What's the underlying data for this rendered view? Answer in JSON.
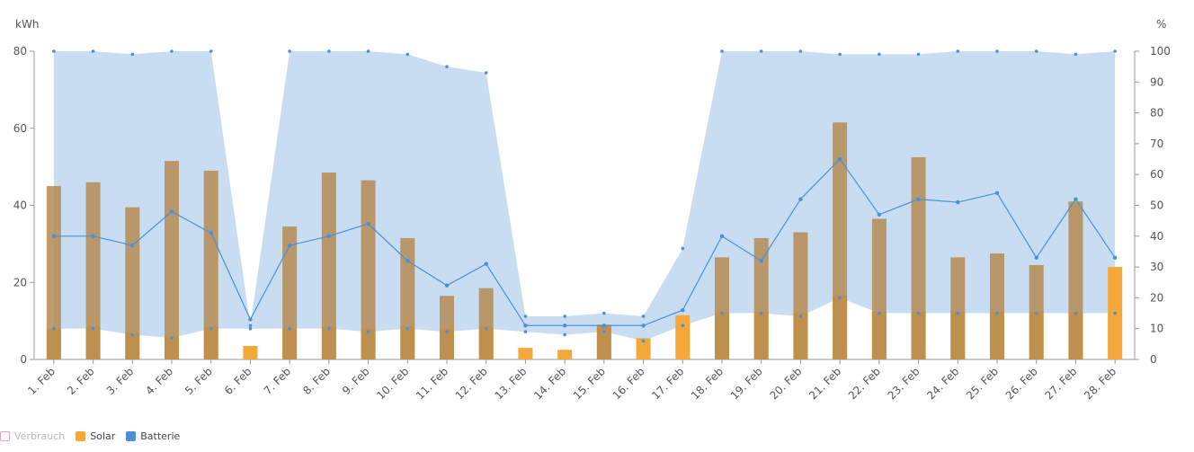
{
  "chart_data": {
    "type": "bar",
    "categories": [
      "1. Feb",
      "2. Feb",
      "3. Feb",
      "4. Feb",
      "5. Feb",
      "6. Feb",
      "7. Feb",
      "8. Feb",
      "9. Feb",
      "10. Feb",
      "11. Feb",
      "12. Feb",
      "13. Feb",
      "14. Feb",
      "15. Feb",
      "16. Feb",
      "17. Feb",
      "18. Feb",
      "19. Feb",
      "20. Feb",
      "21. Feb",
      "22. Feb",
      "23. Feb",
      "24. Feb",
      "25. Feb",
      "26. Feb",
      "27. Feb",
      "28. Feb"
    ],
    "left_axis": {
      "unit": "kWh",
      "ticks": [
        0,
        20,
        40,
        60,
        80
      ],
      "ylim": [
        0,
        80
      ]
    },
    "right_axis": {
      "unit": "%",
      "ticks": [
        0,
        10,
        20,
        30,
        40,
        50,
        60,
        70,
        80,
        90,
        100
      ],
      "ylim": [
        0,
        100
      ]
    },
    "legend_placement": "bottom-left",
    "series": [
      {
        "name": "Verbrauch",
        "kind": "bar",
        "color": "#b58b52",
        "visible": false,
        "values": [
          45,
          46,
          39.5,
          51.5,
          49,
          0,
          34.5,
          48.5,
          46.5,
          31.5,
          16.5,
          18.5,
          0,
          0,
          9,
          0,
          0,
          26.5,
          31.5,
          33,
          61.5,
          36.5,
          52.5,
          26.5,
          27.5,
          24.5,
          41,
          0
        ]
      },
      {
        "name": "Solar",
        "kind": "bar",
        "color": "#f5a83a",
        "visible": true,
        "values": [
          8,
          8.5,
          7,
          6,
          8.5,
          3.5,
          8,
          8.5,
          8,
          8.5,
          8,
          8.5,
          3,
          2.5,
          9,
          5.5,
          11.5,
          12.5,
          12.5,
          12,
          16.5,
          12.5,
          12.5,
          12.5,
          12.5,
          12.5,
          12.5,
          24
        ]
      },
      {
        "name": "Batterie",
        "kind": "line+band",
        "axis": "right",
        "color": "#4a90d9",
        "band_color": "#c8ddf1",
        "visible": true,
        "values": [
          40,
          40,
          37,
          48,
          41,
          13,
          37,
          40,
          44,
          32,
          24,
          31,
          11,
          11,
          11,
          11,
          16,
          40,
          32,
          52,
          65,
          47,
          52,
          51,
          54,
          33,
          52,
          33
        ],
        "max": [
          100,
          100,
          99,
          100,
          100,
          11,
          100,
          100,
          100,
          99,
          95,
          93,
          14,
          14,
          15,
          14,
          36,
          100,
          100,
          100,
          99,
          99,
          99,
          100,
          100,
          100,
          99,
          100
        ],
        "min": [
          10,
          10,
          8,
          7,
          10,
          10,
          10,
          10,
          9,
          10,
          9,
          10,
          9,
          8,
          9,
          6,
          11,
          15,
          15,
          14,
          20,
          15,
          15,
          15,
          15,
          15,
          15,
          15
        ]
      }
    ]
  },
  "legend": {
    "verbrauch": "Verbrauch",
    "solar": "Solar",
    "batterie": "Batterie"
  }
}
